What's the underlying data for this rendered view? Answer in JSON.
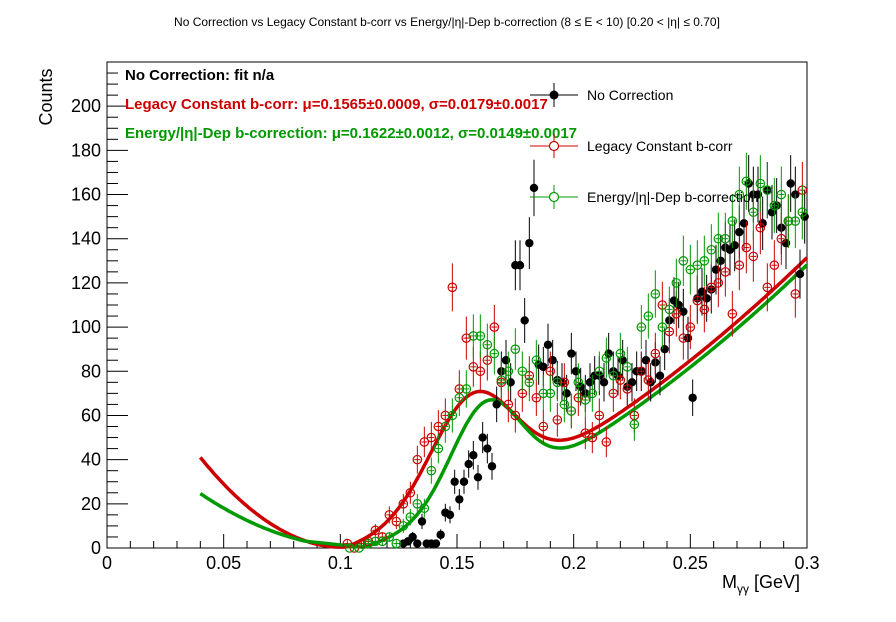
{
  "chart_data": {
    "type": "scatter",
    "title": "No Correction vs Legacy Constant b-corr vs Energy/|η|-Dep b-correction   (8 ≤ E < 10)   [0.20 < |η| ≤ 0.70]",
    "xlabel": "M",
    "xlabel_sub": "γγ",
    "xlabel_unit": " [GeV]",
    "ylabel": "Counts",
    "xlim": [
      0,
      0.3
    ],
    "ylim": [
      0,
      220
    ],
    "xticks": [
      0,
      0.05,
      0.1,
      0.15,
      0.2,
      0.25,
      0.3
    ],
    "xtick_labels": [
      "0",
      "0.05",
      "0.1",
      "0.15",
      "0.2",
      "0.25",
      "0.3"
    ],
    "yticks": [
      0,
      20,
      40,
      60,
      80,
      100,
      120,
      140,
      160,
      180,
      200
    ],
    "ytick_labels": [
      "0",
      "20",
      "40",
      "60",
      "80",
      "100",
      "120",
      "140",
      "160",
      "180",
      "200"
    ],
    "legend_position": "top-right",
    "colors": {
      "none": "#000000",
      "legacy": "#cc0000",
      "energy": "#009900"
    },
    "fit_texts": [
      {
        "text": "No Correction: fit n/a",
        "color": "#000000"
      },
      {
        "text": "Legacy Constant b-corr: μ=0.1565±0.0009, σ=0.0179±0.0017",
        "color": "#cc0000"
      },
      {
        "text": "Energy/|η|-Dep b-correction: μ=0.1622±0.0012, σ=0.0149±0.0017",
        "color": "#009900"
      }
    ],
    "series": [
      {
        "name": "No Correction",
        "style": "filled",
        "color": "#000000",
        "x": [
          0.127,
          0.129,
          0.131,
          0.133,
          0.135,
          0.137,
          0.139,
          0.141,
          0.143,
          0.145,
          0.147,
          0.149,
          0.151,
          0.153,
          0.155,
          0.157,
          0.159,
          0.161,
          0.163,
          0.165,
          0.167,
          0.169,
          0.171,
          0.173,
          0.175,
          0.177,
          0.179,
          0.181,
          0.183,
          0.185,
          0.187,
          0.189,
          0.191,
          0.193,
          0.195,
          0.197,
          0.199,
          0.201,
          0.203,
          0.205,
          0.207,
          0.209,
          0.211,
          0.213,
          0.215,
          0.217,
          0.219,
          0.221,
          0.223,
          0.225,
          0.227,
          0.229,
          0.231,
          0.233,
          0.235,
          0.237,
          0.239,
          0.241,
          0.243,
          0.245,
          0.247,
          0.249,
          0.251,
          0.253,
          0.255,
          0.257,
          0.259,
          0.261,
          0.263,
          0.265,
          0.267,
          0.269,
          0.271,
          0.273,
          0.275,
          0.277,
          0.279,
          0.281,
          0.283,
          0.285,
          0.287,
          0.289,
          0.291,
          0.293,
          0.295,
          0.297,
          0.299
        ],
        "values": [
          2,
          3,
          5,
          2,
          12,
          2,
          2,
          2,
          6,
          16,
          15,
          30,
          22,
          30,
          38,
          42,
          32,
          50,
          45,
          37,
          65,
          80,
          85,
          75,
          128,
          128,
          103,
          138,
          163,
          83,
          82,
          92,
          85,
          76,
          75,
          70,
          88,
          80,
          73,
          70,
          75,
          78,
          78,
          75,
          88,
          80,
          78,
          85,
          73,
          75,
          80,
          80,
          85,
          75,
          84,
          78,
          90,
          103,
          112,
          110,
          107,
          95,
          68,
          113,
          116,
          113,
          117,
          126,
          130,
          136,
          135,
          137,
          143,
          147,
          165,
          160,
          160,
          147,
          162,
          152,
          155,
          145,
          138,
          165,
          160,
          124,
          150
        ]
      },
      {
        "name": "Legacy Constant b-corr",
        "style": "open",
        "color": "#cc0000",
        "x": [
          0.103,
          0.106,
          0.109,
          0.112,
          0.115,
          0.118,
          0.121,
          0.124,
          0.127,
          0.13,
          0.133,
          0.136,
          0.139,
          0.142,
          0.145,
          0.148,
          0.151,
          0.154,
          0.157,
          0.16,
          0.163,
          0.166,
          0.169,
          0.172,
          0.175,
          0.178,
          0.181,
          0.184,
          0.187,
          0.19,
          0.193,
          0.196,
          0.199,
          0.202,
          0.205,
          0.208,
          0.211,
          0.214,
          0.217,
          0.22,
          0.223,
          0.226,
          0.229,
          0.232,
          0.235,
          0.238,
          0.241,
          0.244,
          0.247,
          0.25,
          0.253,
          0.256,
          0.259,
          0.262,
          0.265,
          0.268,
          0.271,
          0.274,
          0.277,
          0.28,
          0.283,
          0.286,
          0.289,
          0.292,
          0.295,
          0.298
        ],
        "values": [
          2,
          0,
          2,
          3,
          8,
          5,
          15,
          12,
          20,
          25,
          40,
          48,
          50,
          55,
          60,
          118,
          72,
          95,
          82,
          80,
          85,
          100,
          75,
          65,
          60,
          70,
          78,
          68,
          55,
          80,
          58,
          75,
          62,
          68,
          52,
          50,
          60,
          48,
          70,
          76,
          72,
          60,
          80,
          76,
          88,
          110,
          98,
          106,
          95,
          100,
          112,
          108,
          118,
          120,
          125,
          106,
          128,
          136,
          132,
          145,
          118,
          128,
          140,
          148,
          115,
          162
        ]
      },
      {
        "name": "Energy/|η|-Dep b-correction",
        "style": "open",
        "color": "#009900",
        "x": [
          0.104,
          0.108,
          0.112,
          0.115,
          0.118,
          0.121,
          0.124,
          0.127,
          0.13,
          0.133,
          0.136,
          0.139,
          0.142,
          0.145,
          0.148,
          0.151,
          0.154,
          0.157,
          0.16,
          0.163,
          0.166,
          0.169,
          0.172,
          0.175,
          0.178,
          0.181,
          0.184,
          0.187,
          0.19,
          0.193,
          0.196,
          0.199,
          0.202,
          0.205,
          0.208,
          0.211,
          0.214,
          0.217,
          0.22,
          0.223,
          0.226,
          0.229,
          0.232,
          0.235,
          0.238,
          0.241,
          0.244,
          0.247,
          0.25,
          0.253,
          0.256,
          0.259,
          0.262,
          0.265,
          0.268,
          0.271,
          0.274,
          0.277,
          0.28,
          0.283,
          0.286,
          0.289,
          0.292,
          0.295,
          0.298
        ],
        "values": [
          0,
          0,
          2,
          3,
          3,
          5,
          2,
          10,
          14,
          20,
          18,
          35,
          45,
          55,
          60,
          68,
          72,
          96,
          96,
          92,
          88,
          76,
          80,
          90,
          80,
          75,
          85,
          70,
          70,
          75,
          65,
          62,
          75,
          67,
          70,
          80,
          86,
          78,
          88,
          82,
          56,
          100,
          105,
          115,
          100,
          108,
          120,
          130,
          126,
          128,
          130,
          135,
          140,
          140,
          148,
          160,
          166,
          152,
          165,
          162,
          155,
          160,
          148,
          148,
          152
        ]
      }
    ],
    "fits": [
      {
        "name": "Legacy Constant b-corr fit",
        "color": "#cc0000",
        "mu": 0.1565,
        "sigma": 0.0179,
        "amp": 48,
        "x0": 0.04,
        "x1": 0.3,
        "bkg_root": 0.1025,
        "bkg_a": 10500,
        "bkg_b": -35000
      },
      {
        "name": "Energy/|η|-Dep b-correction fit",
        "color": "#009900",
        "mu": 0.1622,
        "sigma": 0.0149,
        "amp": 44,
        "x0": 0.04,
        "x1": 0.3,
        "bkg_root": 0.1095,
        "bkg_a": 5100,
        "bkg_b": 45000
      }
    ]
  }
}
